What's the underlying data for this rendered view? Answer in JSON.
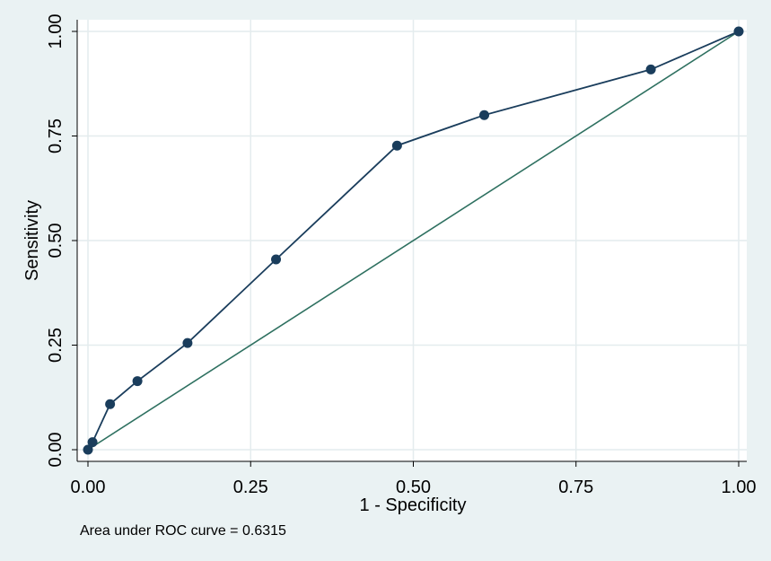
{
  "chart_data": {
    "type": "line",
    "xlabel": "1 - Specificity",
    "ylabel": "Sensitivity",
    "xlim": [
      0,
      1
    ],
    "ylim": [
      0,
      1
    ],
    "x_ticks": [
      "0.00",
      "0.25",
      "0.50",
      "0.75",
      "1.00"
    ],
    "y_ticks": [
      "0.00",
      "0.25",
      "0.50",
      "0.75",
      "1.00"
    ],
    "grid": true,
    "series": [
      {
        "type": "line-with-markers",
        "color": "#1a3d5c",
        "x": [
          0.0,
          0.007,
          0.034,
          0.076,
          0.153,
          0.289,
          0.475,
          0.609,
          0.865,
          1.0
        ],
        "y": [
          0.0,
          0.018,
          0.109,
          0.164,
          0.255,
          0.455,
          0.727,
          0.8,
          0.909,
          1.0
        ]
      },
      {
        "type": "reference-line",
        "color": "#2e7060",
        "x": [
          0,
          1
        ],
        "y": [
          0,
          1
        ]
      }
    ],
    "note": "Area under ROC curve = 0.6315"
  }
}
